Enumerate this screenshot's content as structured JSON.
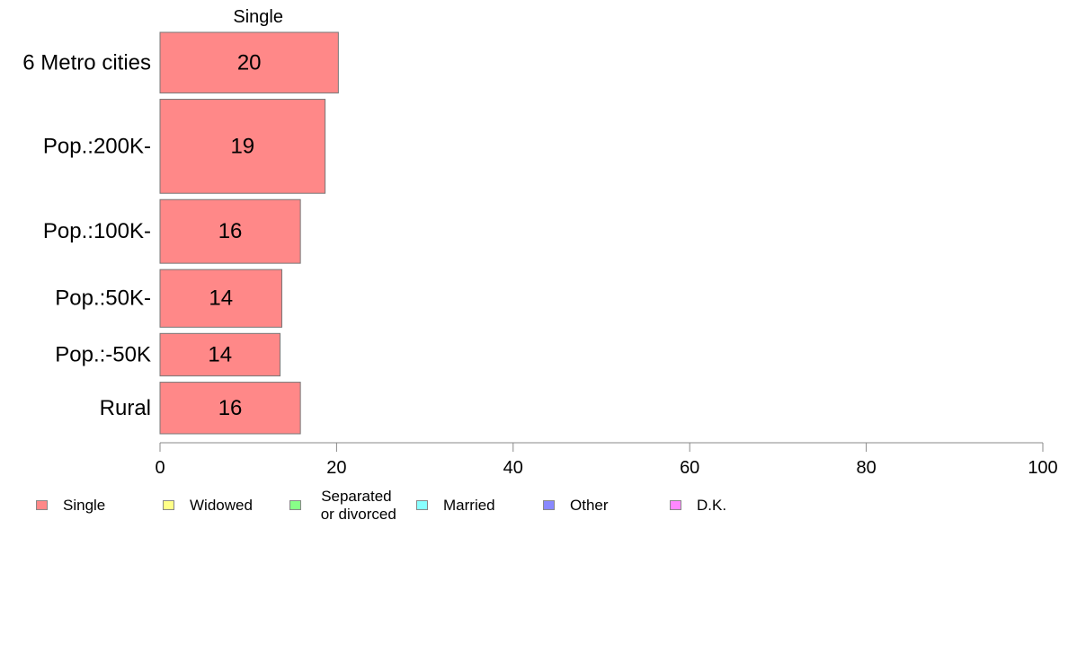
{
  "chart_data": {
    "type": "bar",
    "orientation": "horizontal",
    "title": "Single",
    "categories": [
      "6 Metro cities",
      "Pop.:200K-",
      "Pop.:100K-",
      "Pop.:50K-",
      "Pop.:-50K",
      "Rural"
    ],
    "series": [
      {
        "name": "Single",
        "color": "#ff8888",
        "values": [
          20.2,
          18.7,
          15.9,
          13.8,
          13.6,
          15.9
        ],
        "labels": [
          "20",
          "19",
          "16",
          "14",
          "14",
          "16"
        ]
      }
    ],
    "category_weights": [
      1.0,
      1.55,
      1.05,
      0.95,
      0.7,
      0.85
    ],
    "xlim": [
      0,
      100
    ],
    "xticks": [
      0,
      20,
      40,
      60,
      80,
      100
    ],
    "grid": false
  },
  "legend": {
    "placement": "bottom",
    "items": [
      {
        "label": "Single",
        "color": "#ff8888"
      },
      {
        "label": "Widowed",
        "color": "#ffff88"
      },
      {
        "label": "Separated\n or divorced",
        "color": "#88ff88"
      },
      {
        "label": "Married",
        "color": "#88ffff"
      },
      {
        "label": "Other",
        "color": "#8888ff"
      },
      {
        "label": "D.K.",
        "color": "#ff88ff"
      }
    ]
  }
}
